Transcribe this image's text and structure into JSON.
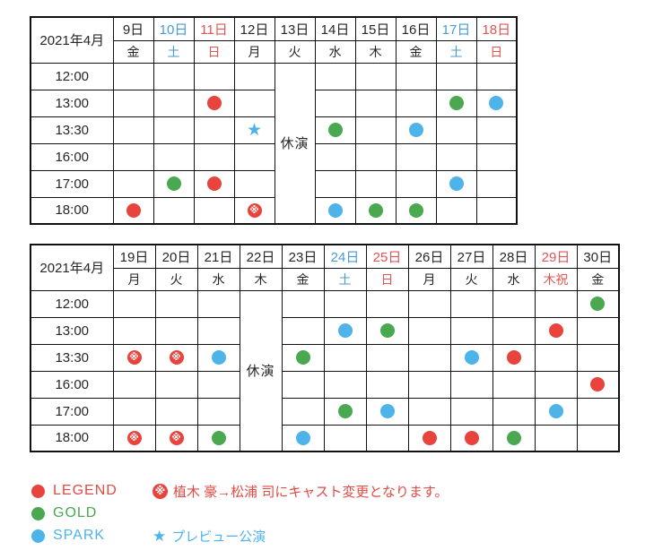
{
  "colors": {
    "legend_red": "#e8433c",
    "gold_green": "#4aa850",
    "spark_blue": "#4db3e8",
    "date_blue": "#4a9ad2",
    "date_red": "#e05555",
    "text_black": "#262626",
    "note_red": "#e04b44"
  },
  "marker_codes": {
    "L": "red circle (LEGEND)",
    "G": "green circle (GOLD)",
    "S": "blue circle (SPARK)",
    "LX": "red circle with white ※ (LEGEND, cast change)",
    "P": "blue star (preview performance)"
  },
  "tables": [
    {
      "title": "2021年4月",
      "closed_label": "休演",
      "closed_col": 4,
      "days": [
        {
          "date": "9日",
          "dow": "金",
          "tone": "black"
        },
        {
          "date": "10日",
          "dow": "土",
          "tone": "blue"
        },
        {
          "date": "11日",
          "dow": "日",
          "tone": "red"
        },
        {
          "date": "12日",
          "dow": "月",
          "tone": "black"
        },
        {
          "date": "13日",
          "dow": "火",
          "tone": "black"
        },
        {
          "date": "14日",
          "dow": "水",
          "tone": "black"
        },
        {
          "date": "15日",
          "dow": "木",
          "tone": "black"
        },
        {
          "date": "16日",
          "dow": "金",
          "tone": "black"
        },
        {
          "date": "17日",
          "dow": "土",
          "tone": "blue"
        },
        {
          "date": "18日",
          "dow": "日",
          "tone": "red"
        }
      ],
      "times": [
        "12:00",
        "13:00",
        "13:30",
        "16:00",
        "17:00",
        "18:00"
      ],
      "cells": [
        [
          "",
          "",
          "",
          "",
          "",
          "",
          "",
          "",
          "",
          ""
        ],
        [
          "",
          "",
          "L",
          "",
          "",
          "",
          "",
          "",
          "G",
          "S"
        ],
        [
          "",
          "",
          "",
          "P",
          "",
          "G",
          "",
          "S",
          "",
          ""
        ],
        [
          "",
          "",
          "",
          "",
          "",
          "",
          "",
          "",
          "",
          ""
        ],
        [
          "",
          "G",
          "L",
          "",
          "",
          "",
          "",
          "",
          "S",
          ""
        ],
        [
          "L",
          "",
          "",
          "LX",
          "",
          "S",
          "G",
          "G",
          "",
          ""
        ]
      ]
    },
    {
      "title": "2021年4月",
      "closed_label": "休演",
      "closed_col": 3,
      "days": [
        {
          "date": "19日",
          "dow": "月",
          "tone": "black"
        },
        {
          "date": "20日",
          "dow": "火",
          "tone": "black"
        },
        {
          "date": "21日",
          "dow": "水",
          "tone": "black"
        },
        {
          "date": "22日",
          "dow": "木",
          "tone": "black"
        },
        {
          "date": "23日",
          "dow": "金",
          "tone": "black"
        },
        {
          "date": "24日",
          "dow": "土",
          "tone": "blue"
        },
        {
          "date": "25日",
          "dow": "日",
          "tone": "red"
        },
        {
          "date": "26日",
          "dow": "月",
          "tone": "black"
        },
        {
          "date": "27日",
          "dow": "火",
          "tone": "black"
        },
        {
          "date": "28日",
          "dow": "水",
          "tone": "black"
        },
        {
          "date": "29日",
          "dow": "木祝",
          "tone": "red"
        },
        {
          "date": "30日",
          "dow": "金",
          "tone": "black"
        }
      ],
      "times": [
        "12:00",
        "13:00",
        "13:30",
        "16:00",
        "17:00",
        "18:00"
      ],
      "cells": [
        [
          "",
          "",
          "",
          "",
          "",
          "",
          "",
          "",
          "",
          "",
          "",
          "G"
        ],
        [
          "",
          "",
          "",
          "",
          "",
          "S",
          "G",
          "",
          "",
          "",
          "L",
          ""
        ],
        [
          "LX",
          "LX",
          "S",
          "",
          "G",
          "",
          "",
          "",
          "S",
          "L",
          "",
          ""
        ],
        [
          "",
          "",
          "",
          "",
          "",
          "",
          "",
          "",
          "",
          "",
          "",
          "L"
        ],
        [
          "",
          "",
          "",
          "",
          "",
          "G",
          "S",
          "",
          "",
          "",
          "S",
          ""
        ],
        [
          "LX",
          "LX",
          "G",
          "",
          "S",
          "",
          "",
          "L",
          "L",
          "G",
          "",
          ""
        ]
      ]
    }
  ],
  "legend": {
    "rows": [
      {
        "show": {
          "label": "LEGEND",
          "color": "red"
        },
        "note": {
          "symbol": "※",
          "text": "植木 豪→松浦 司にキャスト変更となります。",
          "color": "red"
        }
      },
      {
        "show": {
          "label": "GOLD",
          "color": "green"
        },
        "note": null
      },
      {
        "show": {
          "label": "SPARK",
          "color": "blue"
        },
        "note": {
          "symbol": "★",
          "text": "プレビュー公演",
          "color": "blue"
        }
      }
    ]
  }
}
